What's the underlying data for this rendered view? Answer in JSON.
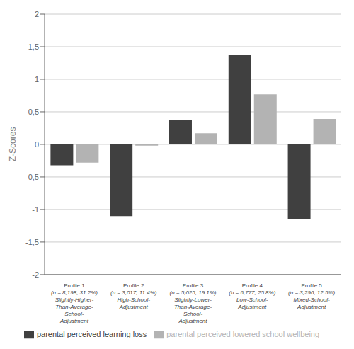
{
  "chart_data": {
    "type": "bar",
    "categories": [
      "Profile 1\n(n = 8,198, 31.2%)\nSlightly-Higher-\nThan-Average-\nSchool-\nAdjustment",
      "Profile 2\n(n = 3,017, 11.4%)\nHigh-School-\nAdjustment",
      "Profile 3\n(n = 5,025, 19.1%)\nSlightly-Lower-\nThan-Average-\nSchool-\nAdjustment",
      "Profile 4\n(n = 6,777, 25.8%)\nLow-School-\nAdjustment",
      "Profile 5\n(n = 3,296, 12.5%)\nMixed-School-\nAdjustment"
    ],
    "series": [
      {
        "name": "parental perceived learning loss",
        "color": "#404040",
        "values": [
          -0.32,
          -1.1,
          0.37,
          1.38,
          -1.15
        ]
      },
      {
        "name": "parental perceived lowered school wellbeing",
        "color": "#b3b3b3",
        "values": [
          -0.28,
          -0.02,
          0.17,
          0.77,
          0.39
        ]
      }
    ],
    "ylabel": "Z-Scores",
    "ylim": [
      -2,
      2
    ],
    "yticks": [
      -2,
      {
        "value": -1.5,
        "label": "-1,5"
      },
      -1,
      {
        "value": -0.5,
        "label": "-0,5"
      },
      0,
      {
        "value": 0.5,
        "label": "0,5"
      },
      1,
      {
        "value": 1.5,
        "label": "1,5"
      },
      2
    ],
    "grid": true,
    "legend": "bottom"
  }
}
